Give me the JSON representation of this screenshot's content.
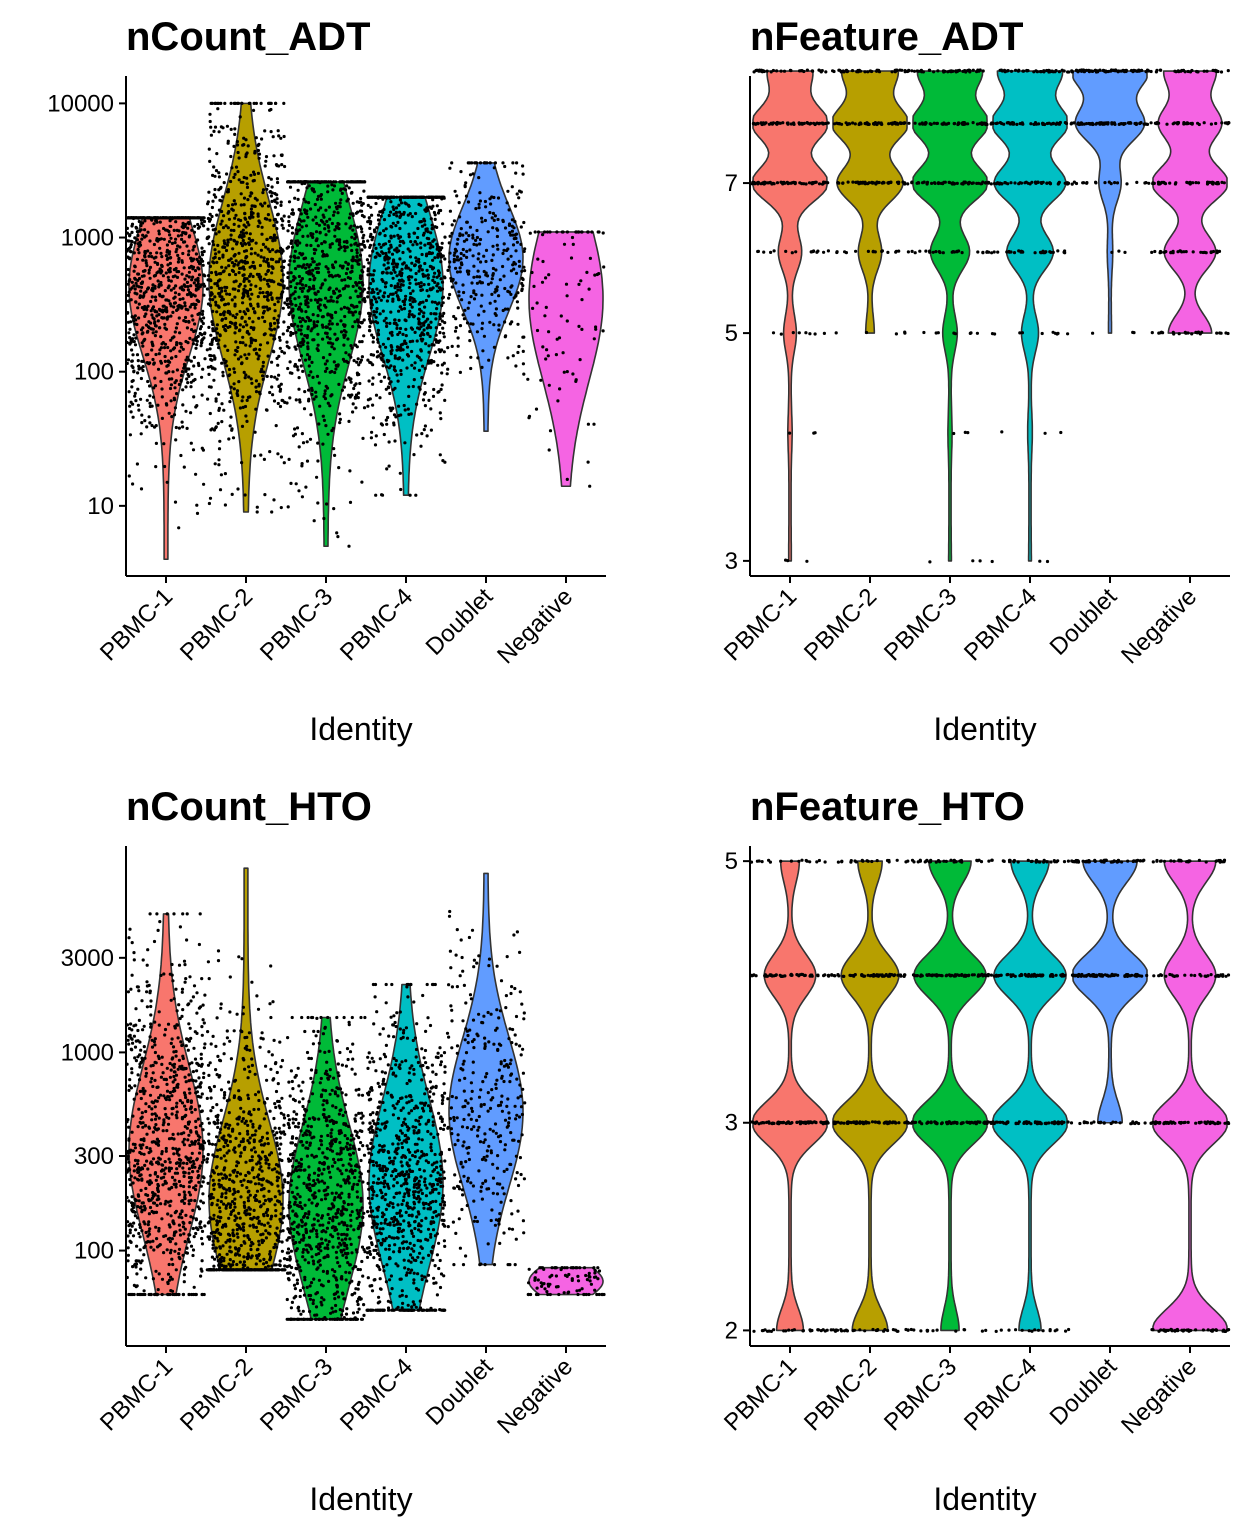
{
  "chart_data": [
    {
      "type": "violin",
      "title": "nCount_ADT",
      "xlabel": "Identity",
      "ylabel": "",
      "scale": "log10",
      "ylim": [
        3,
        16000
      ],
      "yticks": [
        10,
        100,
        1000,
        10000
      ],
      "yticklabels": [
        "10",
        "100",
        "1000",
        "10000"
      ],
      "categories": [
        "PBMC-1",
        "PBMC-2",
        "PBMC-3",
        "PBMC-4",
        "Doublet",
        "Negative"
      ],
      "colors": [
        "#F8766D",
        "#B79F00",
        "#00BA38",
        "#00BFC4",
        "#619CFF",
        "#F564E3"
      ],
      "grid": false,
      "legend": "none",
      "series": [
        {
          "category": "PBMC-1",
          "min": 4,
          "max": 1400,
          "median": 430,
          "q1": 140,
          "q3": 700,
          "count": 900,
          "discrete": false
        },
        {
          "category": "PBMC-2",
          "min": 9,
          "max": 10000,
          "median": 480,
          "q1": 120,
          "q3": 750,
          "count": 850,
          "discrete": false
        },
        {
          "category": "PBMC-3",
          "min": 5,
          "max": 2600,
          "median": 460,
          "q1": 110,
          "q3": 700,
          "count": 850,
          "discrete": false
        },
        {
          "category": "PBMC-4",
          "min": 12,
          "max": 2000,
          "median": 450,
          "q1": 130,
          "q3": 700,
          "count": 850,
          "discrete": false
        },
        {
          "category": "Doublet",
          "min": 36,
          "max": 3600,
          "median": 700,
          "q1": 300,
          "q3": 1000,
          "count": 320,
          "discrete": false
        },
        {
          "category": "Negative",
          "min": 14,
          "max": 1100,
          "median": 350,
          "q1": 90,
          "q3": 600,
          "count": 90,
          "discrete": false
        }
      ]
    },
    {
      "type": "violin",
      "title": "nFeature_ADT",
      "xlabel": "Identity",
      "ylabel": "",
      "scale": "log10",
      "ylim": [
        2.9,
        8.9
      ],
      "yticks": [
        3,
        5,
        7
      ],
      "yticklabels": [
        "3",
        "5",
        "7"
      ],
      "categories": [
        "PBMC-1",
        "PBMC-2",
        "PBMC-3",
        "PBMC-4",
        "Doublet",
        "Negative"
      ],
      "colors": [
        "#F8766D",
        "#B79F00",
        "#00BA38",
        "#00BFC4",
        "#619CFF",
        "#F564E3"
      ],
      "grid": false,
      "legend": "none",
      "series": [
        {
          "category": "PBMC-1",
          "discrete": true,
          "levels": [
            3,
            4,
            5,
            6,
            7,
            8,
            9
          ],
          "density": [
            0.002,
            0.01,
            0.05,
            0.1,
            0.35,
            0.35,
            0.2
          ]
        },
        {
          "category": "PBMC-2",
          "discrete": true,
          "levels": [
            5,
            6,
            7,
            8,
            9
          ],
          "density": [
            0.03,
            0.1,
            0.3,
            0.35,
            0.25
          ]
        },
        {
          "category": "PBMC-3",
          "discrete": true,
          "levels": [
            3,
            4,
            5,
            6,
            7,
            8,
            9
          ],
          "density": [
            0.002,
            0.008,
            0.05,
            0.15,
            0.3,
            0.3,
            0.25
          ]
        },
        {
          "category": "PBMC-4",
          "discrete": true,
          "levels": [
            3,
            4,
            5,
            6,
            7,
            8,
            9
          ],
          "density": [
            0.002,
            0.01,
            0.06,
            0.18,
            0.28,
            0.3,
            0.25
          ]
        },
        {
          "category": "Doublet",
          "discrete": true,
          "levels": [
            5,
            6,
            7,
            8,
            9
          ],
          "density": [
            0.005,
            0.02,
            0.12,
            0.4,
            0.45
          ]
        },
        {
          "category": "Negative",
          "discrete": true,
          "levels": [
            5,
            6,
            7,
            8,
            9
          ],
          "density": [
            0.15,
            0.18,
            0.27,
            0.22,
            0.18
          ]
        }
      ]
    },
    {
      "type": "violin",
      "title": "nCount_HTO",
      "xlabel": "Identity",
      "ylabel": "",
      "scale": "log10",
      "ylim": [
        33,
        11000
      ],
      "yticks": [
        100,
        300,
        1000,
        3000
      ],
      "yticklabels": [
        "100",
        "300",
        "1000",
        "3000"
      ],
      "categories": [
        "PBMC-1",
        "PBMC-2",
        "PBMC-3",
        "PBMC-4",
        "Doublet",
        "Negative"
      ],
      "colors": [
        "#F8766D",
        "#B79F00",
        "#00BA38",
        "#00BFC4",
        "#619CFF",
        "#F564E3"
      ],
      "grid": false,
      "legend": "none",
      "series": [
        {
          "category": "PBMC-1",
          "min": 60,
          "max": 5000,
          "median": 320,
          "q1": 160,
          "q3": 600,
          "count": 900,
          "discrete": false
        },
        {
          "category": "PBMC-2",
          "min": 80,
          "max": 8500,
          "median": 180,
          "q1": 110,
          "q3": 380,
          "count": 850,
          "discrete": false
        },
        {
          "category": "PBMC-3",
          "min": 45,
          "max": 1500,
          "median": 170,
          "q1": 90,
          "q3": 320,
          "count": 850,
          "discrete": false
        },
        {
          "category": "PBMC-4",
          "min": 50,
          "max": 2200,
          "median": 220,
          "q1": 120,
          "q3": 450,
          "count": 850,
          "discrete": false
        },
        {
          "category": "Doublet",
          "min": 85,
          "max": 8000,
          "median": 500,
          "q1": 280,
          "q3": 900,
          "count": 320,
          "discrete": false
        },
        {
          "category": "Negative",
          "min": 60,
          "max": 82,
          "median": 70,
          "q1": 65,
          "q3": 76,
          "count": 90,
          "discrete": false
        }
      ]
    },
    {
      "type": "violin",
      "title": "nFeature_HTO",
      "xlabel": "Identity",
      "ylabel": "",
      "scale": "log10",
      "ylim": [
        1.94,
        5.15
      ],
      "yticks": [
        2,
        3,
        5
      ],
      "yticklabels": [
        "2",
        "3",
        "5"
      ],
      "categories": [
        "PBMC-1",
        "PBMC-2",
        "PBMC-3",
        "PBMC-4",
        "Doublet",
        "Negative"
      ],
      "colors": [
        "#F8766D",
        "#B79F00",
        "#00BA38",
        "#00BFC4",
        "#619CFF",
        "#F564E3"
      ],
      "grid": false,
      "legend": "none",
      "series": [
        {
          "category": "PBMC-1",
          "discrete": true,
          "levels": [
            2,
            3,
            4,
            5
          ],
          "density": [
            0.15,
            0.45,
            0.3,
            0.1
          ]
        },
        {
          "category": "PBMC-2",
          "discrete": true,
          "levels": [
            2,
            3,
            4,
            5
          ],
          "density": [
            0.18,
            0.4,
            0.3,
            0.12
          ]
        },
        {
          "category": "PBMC-3",
          "discrete": true,
          "levels": [
            2,
            3,
            4,
            5
          ],
          "density": [
            0.08,
            0.37,
            0.35,
            0.2
          ]
        },
        {
          "category": "PBMC-4",
          "discrete": true,
          "levels": [
            2,
            3,
            4,
            5
          ],
          "density": [
            0.1,
            0.37,
            0.35,
            0.18
          ]
        },
        {
          "category": "Doublet",
          "discrete": true,
          "levels": [
            3,
            4,
            5
          ],
          "density": [
            0.15,
            0.5,
            0.35
          ]
        },
        {
          "category": "Negative",
          "discrete": true,
          "levels": [
            2,
            3,
            4,
            5
          ],
          "density": [
            0.3,
            0.3,
            0.2,
            0.2
          ]
        }
      ]
    }
  ]
}
